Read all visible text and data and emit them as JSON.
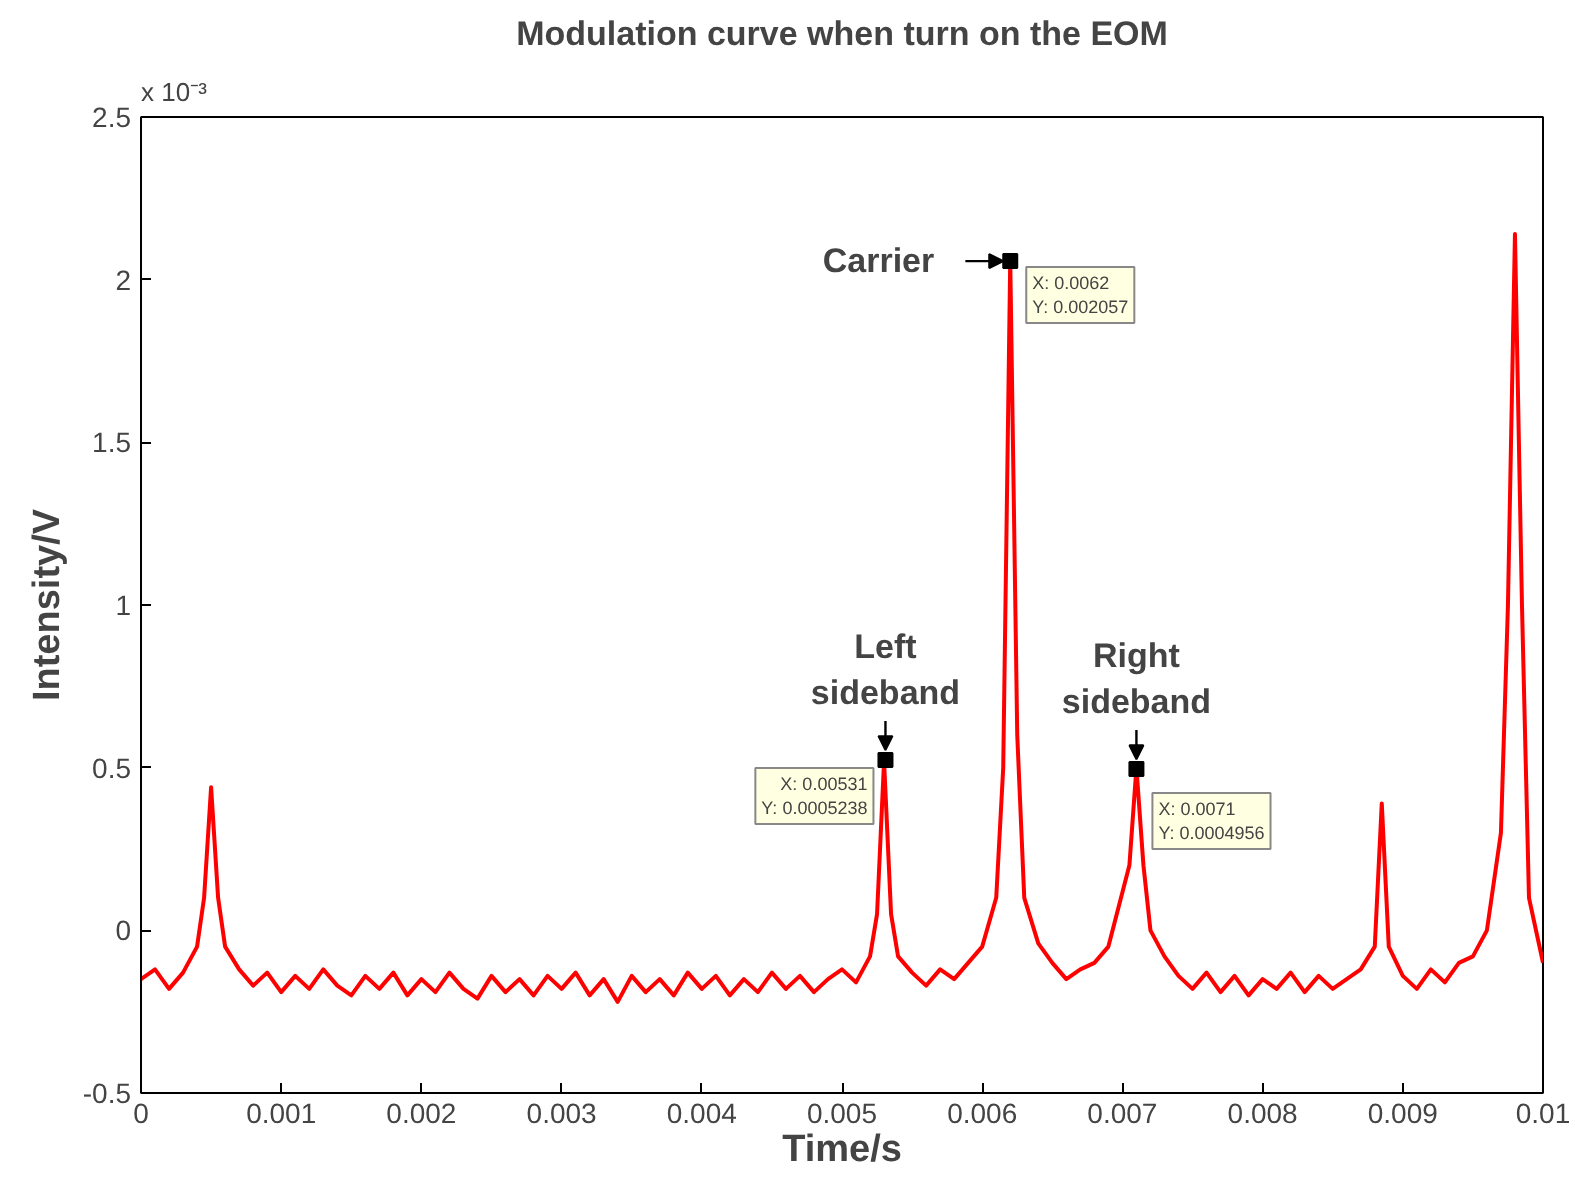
{
  "chart_data": {
    "type": "line",
    "title": "Modulation curve when turn on the EOM",
    "xlabel": "Time/s",
    "ylabel": "Intensity/V",
    "x": [
      0,
      0.0001,
      0.0002,
      0.0003,
      0.0004,
      0.00045,
      0.0005,
      0.00055,
      0.0006,
      0.0007,
      0.0008,
      0.0009,
      0.001,
      0.0011,
      0.0012,
      0.0013,
      0.0014,
      0.0015,
      0.0016,
      0.0017,
      0.0018,
      0.0019,
      0.002,
      0.0021,
      0.0022,
      0.0023,
      0.0024,
      0.0025,
      0.0026,
      0.0027,
      0.0028,
      0.0029,
      0.003,
      0.0031,
      0.0032,
      0.0033,
      0.0034,
      0.0035,
      0.0036,
      0.0037,
      0.0038,
      0.0039,
      0.004,
      0.0041,
      0.0042,
      0.0043,
      0.0044,
      0.0045,
      0.0046,
      0.0047,
      0.0048,
      0.0049,
      0.005,
      0.0051,
      0.0052,
      0.00525,
      0.0053,
      0.00535,
      0.0054,
      0.0055,
      0.0056,
      0.0057,
      0.0058,
      0.0059,
      0.006,
      0.0061,
      0.00615,
      0.0062,
      0.00625,
      0.0063,
      0.0064,
      0.0065,
      0.0066,
      0.0067,
      0.0068,
      0.0069,
      0.00705,
      0.0071,
      0.00715,
      0.0072,
      0.0073,
      0.0074,
      0.0075,
      0.0076,
      0.0077,
      0.0078,
      0.0079,
      0.008,
      0.0081,
      0.0082,
      0.0083,
      0.0084,
      0.0085,
      0.0086,
      0.0087,
      0.0088,
      0.00885,
      0.0089,
      0.009,
      0.0091,
      0.0092,
      0.0093,
      0.0094,
      0.0095,
      0.0096,
      0.0097,
      0.00975,
      0.0098,
      0.00985,
      0.0099,
      0.01
    ],
    "series": [
      {
        "color": "#ff0000",
        "values": [
          -0.15,
          -0.12,
          -0.18,
          -0.13,
          -0.05,
          0.1,
          0.44,
          0.1,
          -0.05,
          -0.12,
          -0.17,
          -0.13,
          -0.19,
          -0.14,
          -0.18,
          -0.12,
          -0.17,
          -0.2,
          -0.14,
          -0.18,
          -0.13,
          -0.2,
          -0.15,
          -0.19,
          -0.13,
          -0.18,
          -0.21,
          -0.14,
          -0.19,
          -0.15,
          -0.2,
          -0.14,
          -0.18,
          -0.13,
          -0.2,
          -0.15,
          -0.22,
          -0.14,
          -0.19,
          -0.15,
          -0.2,
          -0.13,
          -0.18,
          -0.14,
          -0.2,
          -0.15,
          -0.19,
          -0.13,
          -0.18,
          -0.14,
          -0.19,
          -0.15,
          -0.12,
          -0.16,
          -0.08,
          0.05,
          0.52,
          0.05,
          -0.08,
          -0.13,
          -0.17,
          -0.12,
          -0.15,
          -0.1,
          -0.05,
          0.1,
          0.5,
          2.06,
          0.6,
          0.1,
          -0.04,
          -0.1,
          -0.15,
          -0.12,
          -0.1,
          -0.05,
          0.2,
          0.5,
          0.2,
          0.0,
          -0.08,
          -0.14,
          -0.18,
          -0.13,
          -0.19,
          -0.14,
          -0.2,
          -0.15,
          -0.18,
          -0.13,
          -0.19,
          -0.14,
          -0.18,
          -0.15,
          -0.12,
          -0.05,
          0.39,
          -0.05,
          -0.14,
          -0.18,
          -0.12,
          -0.16,
          -0.1,
          -0.08,
          0.0,
          0.3,
          1.0,
          2.14,
          1.0,
          0.1,
          -0.1
        ]
      }
    ],
    "xlim": [
      0,
      0.01
    ],
    "xticks": [
      0,
      0.001,
      0.002,
      0.003,
      0.004,
      0.005,
      0.006,
      0.007,
      0.008,
      0.009,
      0.01
    ],
    "ylim": [
      -0.5,
      2.5
    ],
    "yticks": [
      -0.5,
      0,
      0.5,
      1,
      1.5,
      2,
      2.5
    ],
    "grid": false,
    "marker": "none",
    "line_style": "solid",
    "annotations": [
      "x 10⁻³",
      {
        "text": "Carrier",
        "x": 0.0062,
        "y": 2.057
      },
      {
        "text": "Left\nsideband",
        "x": 0.00531,
        "y": 0.5238
      },
      {
        "text": "Right\nsideband",
        "x": 0.0071,
        "y": 0.4956
      },
      {
        "text": "X: 0.0062\nY: 0.002057",
        "x": 0.0062,
        "y": 2.057
      },
      {
        "text": "X: 0.00531\nY: 0.0005238",
        "x": 0.00531,
        "y": 0.5238
      },
      {
        "text": "X: 0.0071\nY: 0.0004956",
        "x": 0.0071,
        "y": 0.4956
      }
    ]
  }
}
